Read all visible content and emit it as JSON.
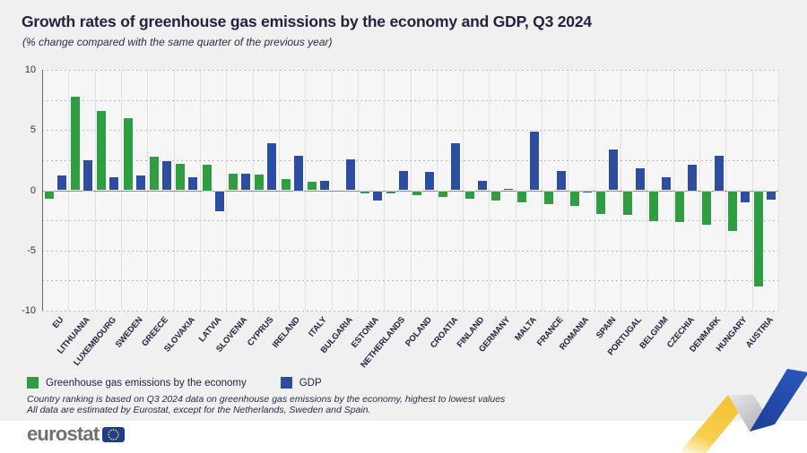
{
  "header": {
    "title": "Growth rates of greenhouse gas emissions by the economy and GDP, Q3 2024",
    "subtitle": "(% change compared with the same quarter of the previous year)"
  },
  "footnotes": {
    "line1": "Country ranking is based on Q3 2024 data on greenhouse gas emissions by the economy, highest to lowest values",
    "line2": "All data are estimated by Eurostat, except for the Netherlands, Sweden and Spain."
  },
  "footer": {
    "brand": "eurostat"
  },
  "colors": {
    "emissions_green": "#2e9e40",
    "gdp_blue": "#2d4da0",
    "panel_gray": "#f0f0f0",
    "flag_blue": "#1d3d94",
    "star_yellow": "#ffd617",
    "ribbon_yellow": "#f6c62e",
    "ribbon_silver": "#c4c4c6",
    "ribbon_blue": "#2450ad"
  },
  "chart_data": {
    "type": "bar",
    "title": "Growth rates of greenhouse gas emissions by the economy and GDP, Q3 2024",
    "subtitle": "(% change compared with the same quarter of the previous year)",
    "categories": [
      "EU",
      "LITHUANIA",
      "LUXEMBOURG",
      "SWEDEN",
      "GREECE",
      "SLOVAKIA",
      "LATVIA",
      "SLOVENIA",
      "CYPRUS",
      "IRELAND",
      "ITALY",
      "BULGARIA",
      "ESTONIA",
      "NETHERLANDS",
      "POLAND",
      "CROATIA",
      "FINLAND",
      "GERMANY",
      "MALTA",
      "FRANCE",
      "ROMANIA",
      "SPAIN",
      "PORTUGAL",
      "BELGIUM",
      "CZECHIA",
      "DENMARK",
      "HUNGARY",
      "AUSTRIA"
    ],
    "series": [
      {
        "name": "Greenhouse gas emissions by the economy",
        "color": "#2e9e40",
        "values": [
          -0.6,
          7.8,
          6.6,
          6.0,
          2.8,
          2.2,
          2.1,
          1.4,
          1.3,
          0.9,
          0.7,
          0.0,
          -0.2,
          -0.2,
          -0.3,
          -0.5,
          -0.6,
          -0.8,
          -0.9,
          -1.1,
          -1.2,
          -1.9,
          -2.0,
          -2.5,
          -2.6,
          -2.8,
          -3.3,
          -7.9
        ]
      },
      {
        "name": "GDP",
        "color": "#2d4da0",
        "values": [
          1.2,
          2.5,
          1.1,
          1.2,
          2.4,
          1.1,
          -1.7,
          1.4,
          3.9,
          2.9,
          0.8,
          2.6,
          -0.8,
          1.6,
          1.5,
          3.9,
          0.8,
          0.1,
          4.9,
          1.6,
          -0.1,
          3.4,
          1.8,
          1.1,
          2.1,
          2.9,
          -0.9,
          -0.7
        ]
      }
    ],
    "ylim": [
      -10,
      10
    ],
    "yticks": [
      10,
      5,
      0,
      -5,
      -10
    ],
    "grid_interval": 2.5,
    "grid": true,
    "legend_position": "bottom-left"
  }
}
